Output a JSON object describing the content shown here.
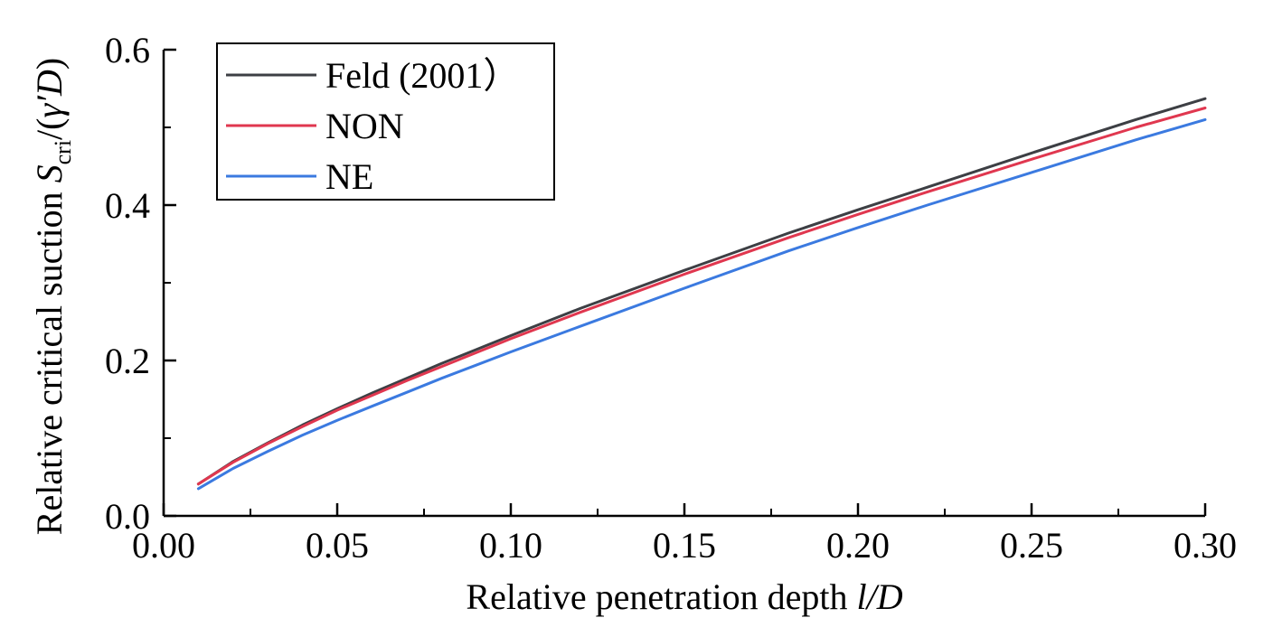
{
  "chart_data": {
    "type": "line",
    "xlabel": {
      "text": "Relative penetration depth ",
      "italic": "l/D"
    },
    "ylabel": {
      "text": "Relative critical suction ",
      "symbol": "S",
      "subscript": "cri",
      "suffix_open": "/(",
      "gamma": "γ′",
      "D": "D",
      "suffix_close": ")"
    },
    "xlim": [
      0.0,
      0.3
    ],
    "ylim": [
      0.0,
      0.6
    ],
    "xticks": [
      "0.00",
      "0.05",
      "0.10",
      "0.15",
      "0.20",
      "0.25",
      "0.30"
    ],
    "yticks": [
      "0.0",
      "0.2",
      "0.4",
      "0.6"
    ],
    "x_tick_values": [
      0.0,
      0.05,
      0.1,
      0.15,
      0.2,
      0.25,
      0.3
    ],
    "y_tick_values": [
      0.0,
      0.2,
      0.4,
      0.6
    ],
    "x_minor_step": 0.025,
    "y_minor_step": 0.1,
    "grid": false,
    "legend_position": "top-left",
    "series": [
      {
        "name": "Feld (2001）",
        "color": "#3d3f44",
        "x": [
          0.01,
          0.02,
          0.03,
          0.04,
          0.05,
          0.06,
          0.07,
          0.08,
          0.09,
          0.1,
          0.12,
          0.15,
          0.18,
          0.2,
          0.22,
          0.25,
          0.28,
          0.3
        ],
        "y": [
          0.041,
          0.07,
          0.094,
          0.117,
          0.138,
          0.158,
          0.177,
          0.196,
          0.214,
          0.232,
          0.267,
          0.316,
          0.364,
          0.394,
          0.423,
          0.467,
          0.51,
          0.537
        ]
      },
      {
        "name": "NON",
        "color": "#e0374f",
        "x": [
          0.01,
          0.02,
          0.03,
          0.04,
          0.05,
          0.06,
          0.07,
          0.08,
          0.09,
          0.1,
          0.12,
          0.15,
          0.18,
          0.2,
          0.22,
          0.25,
          0.28,
          0.3
        ],
        "y": [
          0.041,
          0.069,
          0.093,
          0.115,
          0.136,
          0.155,
          0.174,
          0.192,
          0.21,
          0.228,
          0.262,
          0.311,
          0.358,
          0.388,
          0.417,
          0.459,
          0.5,
          0.525
        ]
      },
      {
        "name": "NE",
        "color": "#3b7ae0",
        "x": [
          0.01,
          0.02,
          0.03,
          0.04,
          0.05,
          0.06,
          0.07,
          0.08,
          0.09,
          0.1,
          0.12,
          0.15,
          0.18,
          0.2,
          0.22,
          0.25,
          0.28,
          0.3
        ],
        "y": [
          0.035,
          0.061,
          0.083,
          0.104,
          0.123,
          0.141,
          0.159,
          0.177,
          0.194,
          0.211,
          0.244,
          0.293,
          0.341,
          0.371,
          0.4,
          0.442,
          0.484,
          0.51
        ]
      }
    ]
  }
}
